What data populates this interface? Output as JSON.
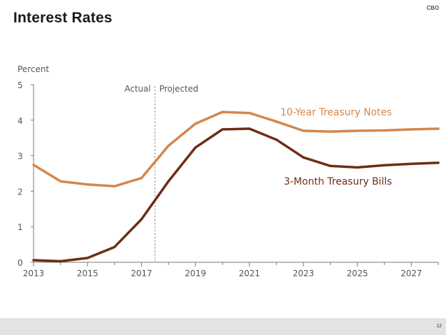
{
  "slide": {
    "title": "Interest Rates",
    "logo": "CBO",
    "page_number": "12"
  },
  "chart_data": {
    "type": "line",
    "title": "Interest Rates",
    "ylabel": "Percent",
    "xlabel": "",
    "xlim": [
      2013,
      2028
    ],
    "ylim": [
      0,
      5
    ],
    "x_ticks": [
      2013,
      2015,
      2017,
      2019,
      2021,
      2023,
      2025,
      2027
    ],
    "y_ticks": [
      0,
      1,
      2,
      3,
      4,
      5
    ],
    "divider": {
      "x": 2017.5,
      "left_label": "Actual",
      "right_label": "Projected"
    },
    "series": [
      {
        "name": "10-Year Treasury Notes",
        "color": "#D4874B",
        "x": [
          2013,
          2014,
          2015,
          2016,
          2017,
          2018,
          2019,
          2020,
          2021,
          2022,
          2023,
          2024,
          2025,
          2026,
          2027,
          2028
        ],
        "y": [
          2.74,
          2.28,
          2.19,
          2.14,
          2.37,
          3.28,
          3.9,
          4.23,
          4.2,
          3.96,
          3.7,
          3.68,
          3.7,
          3.71,
          3.74,
          3.76
        ]
      },
      {
        "name": "3-Month Treasury Bills",
        "color": "#6E2D14",
        "x": [
          2013,
          2014,
          2015,
          2016,
          2017,
          2018,
          2019,
          2020,
          2021,
          2022,
          2023,
          2024,
          2025,
          2026,
          2027,
          2028
        ],
        "y": [
          0.06,
          0.03,
          0.12,
          0.43,
          1.21,
          2.28,
          3.23,
          3.74,
          3.76,
          3.45,
          2.95,
          2.71,
          2.67,
          2.73,
          2.77,
          2.8
        ]
      }
    ]
  }
}
